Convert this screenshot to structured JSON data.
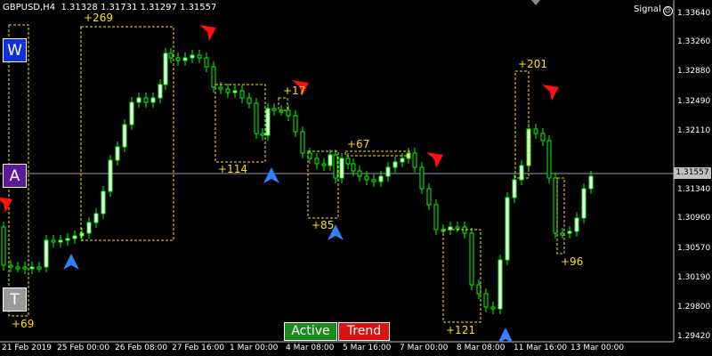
{
  "header": {
    "symbol": "GBPUSD,H4",
    "ohlc": "1.31328 1.31731 1.31297 1.31557"
  },
  "signal": {
    "label": "Signal",
    "icon": "smiley-icon"
  },
  "side_buttons": [
    {
      "label": "W",
      "color": "#1030e0"
    },
    {
      "label": "A",
      "color": "#5a1a9a"
    },
    {
      "label": "T",
      "color": "#9a9a9a"
    }
  ],
  "bottom_buttons": {
    "active": {
      "label": "Active",
      "color": "#1a8a1a"
    },
    "trend": {
      "label": "Trend",
      "color": "#e01010"
    }
  },
  "price_axis": [
    "1.33640",
    "1.33260",
    "1.32880",
    "1.32490",
    "1.32110",
    "1.31340",
    "1.30960",
    "1.30570",
    "1.30190",
    "1.29800",
    "1.29420"
  ],
  "current_price": "1.31557",
  "time_axis": [
    "21 Feb 2019",
    "25 Feb 00:00",
    "26 Feb 08:00",
    "27 Feb 16:00",
    "1 Mar 00:00",
    "4 Mar 08:00",
    "5 Mar 16:00",
    "7 Mar 00:00",
    "8 Mar 08:00",
    "11 Mar 16:00",
    "13 Mar 00:00"
  ],
  "annotations": [
    "+269",
    "+17",
    "+114",
    "+67",
    "+85",
    "+201",
    "+96",
    "+121",
    "+69"
  ],
  "colors": {
    "bull": "#ffffff",
    "bear": "#ffffff",
    "wick": "#00ff00",
    "box": "#ffe000",
    "sell_arrow": "#ff1010",
    "buy_arrow": "#3080ff"
  }
}
